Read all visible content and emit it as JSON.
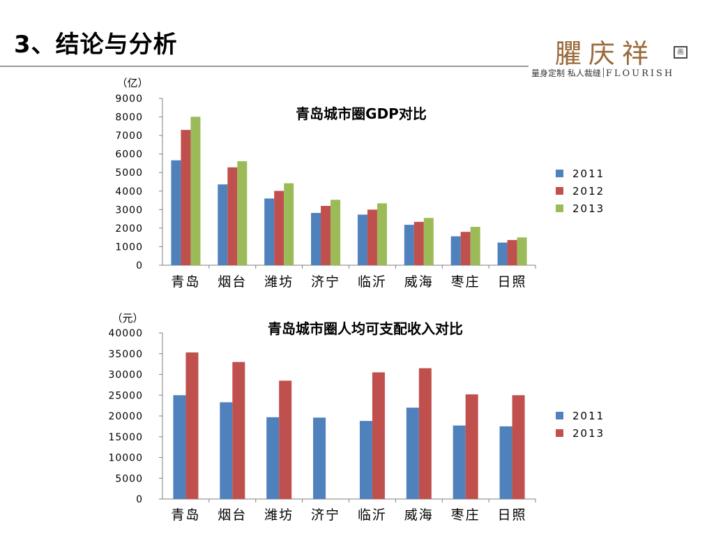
{
  "page": {
    "title": "3、结论与分析"
  },
  "logo": {
    "name": "臞庆祥",
    "seal": "画",
    "tagline": "量身定制 私人裁缝",
    "brand_en": "FLOURISH"
  },
  "chart_data": [
    {
      "type": "bar",
      "title": "青岛城市圈GDP对比",
      "unit_label": "（亿）",
      "categories": [
        "青岛",
        "烟台",
        "潍坊",
        "济宁",
        "临沂",
        "威海",
        "枣庄",
        "日照"
      ],
      "ylim": [
        0,
        9000
      ],
      "yticks": [
        0,
        1000,
        2000,
        3000,
        4000,
        5000,
        6000,
        7000,
        8000,
        9000
      ],
      "legend_position": "right",
      "grid": false,
      "series": [
        {
          "name": "2011",
          "color": "#4f81bd",
          "values": [
            5660,
            4360,
            3600,
            2820,
            2730,
            2180,
            1560,
            1220
          ]
        },
        {
          "name": "2012",
          "color": "#c0504d",
          "values": [
            7300,
            5280,
            4010,
            3200,
            3000,
            2340,
            1800,
            1360
          ]
        },
        {
          "name": "2013",
          "color": "#9bbb59",
          "values": [
            8010,
            5610,
            4420,
            3530,
            3340,
            2550,
            2070,
            1500
          ]
        }
      ]
    },
    {
      "type": "bar",
      "title": "青岛城市圈人均可支配收入对比",
      "unit_label": "（元）",
      "categories": [
        "青岛",
        "烟台",
        "潍坊",
        "济宁",
        "临沂",
        "威海",
        "枣庄",
        "日照"
      ],
      "ylim": [
        0,
        40000
      ],
      "yticks": [
        0,
        5000,
        10000,
        15000,
        20000,
        25000,
        30000,
        35000,
        40000
      ],
      "legend_position": "right",
      "grid": false,
      "series": [
        {
          "name": "2011",
          "color": "#4f81bd",
          "values": [
            25000,
            23300,
            19700,
            19600,
            18800,
            22000,
            17700,
            17500
          ]
        },
        {
          "name": "2013",
          "color": "#c0504d",
          "values": [
            35300,
            33000,
            28500,
            null,
            30500,
            31500,
            25200,
            25000
          ]
        }
      ]
    }
  ]
}
